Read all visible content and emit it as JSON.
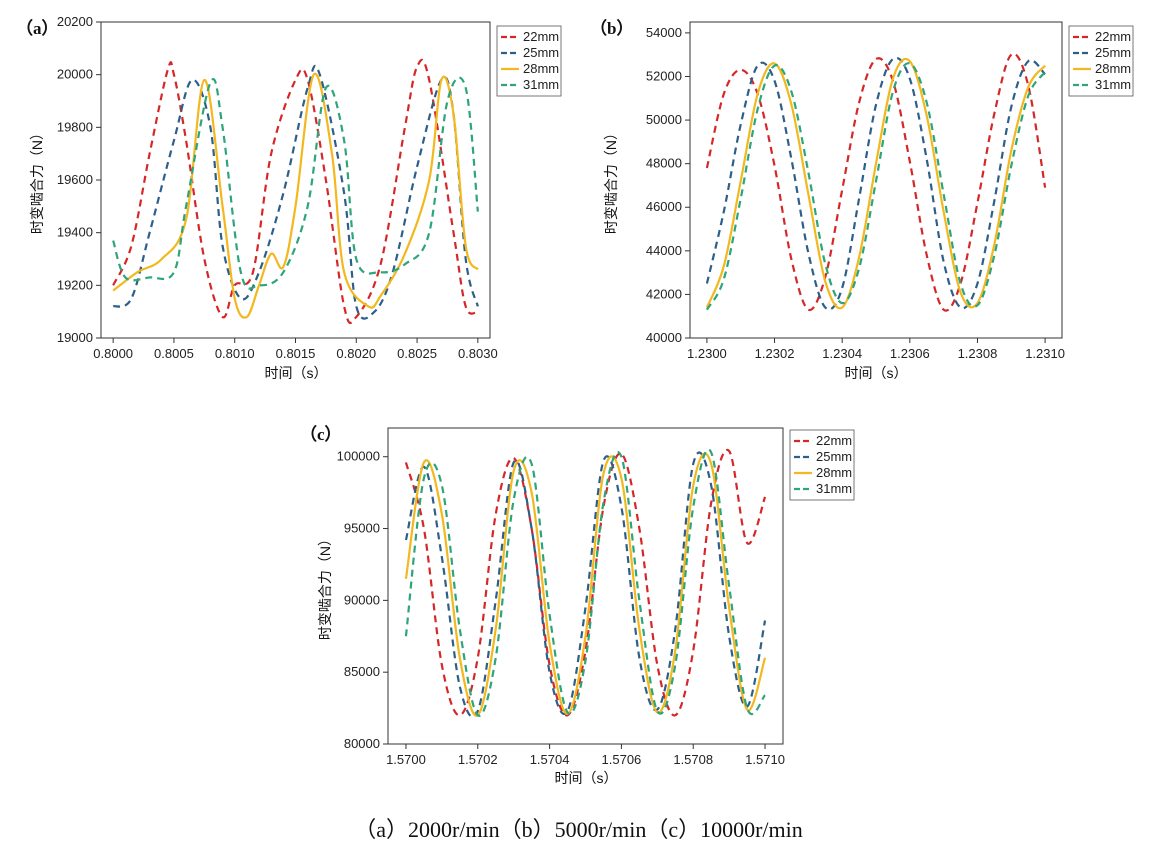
{
  "caption": "（a）2000r/min（b）5000r/min（c）10000r/min",
  "colors": {
    "22mm": "#d62728",
    "25mm": "#2c5f8a",
    "28mm": "#f2b81e",
    "31mm": "#2ca57a"
  },
  "chart_data": [
    {
      "type": "line",
      "tag": "（a）",
      "xlabel": "时间（s）",
      "ylabel": "时变啮合力（N）",
      "xlim": [
        0.7999,
        0.8031
      ],
      "ylim": [
        19000,
        20200
      ],
      "xticks": [
        "0.8000",
        "0.8005",
        "0.8010",
        "0.8015",
        "0.8020",
        "0.8025",
        "0.8030"
      ],
      "yticks": [
        "19000",
        "19200",
        "19400",
        "19600",
        "19800",
        "20000",
        "20200"
      ],
      "legend_position": "outside-top-right",
      "series": [
        {
          "name": "22mm",
          "style": "dashed",
          "x": [
            0.8,
            0.80015,
            0.8003,
            0.80045,
            0.8005,
            0.8006,
            0.80075,
            0.8009,
            0.801,
            0.80115,
            0.8013,
            0.8015,
            0.8016,
            0.80175,
            0.8019,
            0.802,
            0.8022,
            0.8024,
            0.8025,
            0.8026,
            0.8028,
            0.8029,
            0.803
          ],
          "y": [
            19200,
            19350,
            19700,
            20020,
            20000,
            19750,
            19300,
            19080,
            19200,
            19250,
            19700,
            19980,
            19980,
            19600,
            19120,
            19080,
            19280,
            19800,
            20030,
            19980,
            19400,
            19120,
            19100
          ]
        },
        {
          "name": "25mm",
          "style": "dashed",
          "x": [
            0.8,
            0.80015,
            0.8003,
            0.8005,
            0.80065,
            0.8008,
            0.8009,
            0.80105,
            0.8012,
            0.8014,
            0.8016,
            0.8017,
            0.8019,
            0.802,
            0.80215,
            0.8023,
            0.8025,
            0.8027,
            0.8028,
            0.8029,
            0.803
          ],
          "y": [
            19120,
            19150,
            19400,
            19750,
            19980,
            19800,
            19350,
            19150,
            19250,
            19550,
            19950,
            20000,
            19550,
            19120,
            19100,
            19250,
            19650,
            19980,
            19850,
            19300,
            19120
          ]
        },
        {
          "name": "28mm",
          "style": "solid",
          "x": [
            0.8,
            0.8002,
            0.8004,
            0.8006,
            0.80075,
            0.8009,
            0.801,
            0.8011,
            0.8012,
            0.8013,
            0.8014,
            0.8015,
            0.80165,
            0.8018,
            0.8019,
            0.8021,
            0.8022,
            0.8024,
            0.8026,
            0.8027,
            0.8028,
            0.8029,
            0.803
          ],
          "y": [
            19180,
            19250,
            19300,
            19450,
            19980,
            19500,
            19150,
            19080,
            19200,
            19320,
            19270,
            19500,
            20000,
            19700,
            19250,
            19120,
            19160,
            19320,
            19600,
            19980,
            19850,
            19350,
            19260
          ]
        },
        {
          "name": "31mm",
          "style": "dashed",
          "x": [
            0.8,
            0.8001,
            0.8003,
            0.8005,
            0.8006,
            0.8008,
            0.8009,
            0.80105,
            0.8012,
            0.8014,
            0.8016,
            0.80175,
            0.8019,
            0.802,
            0.8022,
            0.8024,
            0.8026,
            0.80275,
            0.8029,
            0.803
          ],
          "y": [
            19370,
            19230,
            19230,
            19250,
            19500,
            19970,
            19800,
            19250,
            19200,
            19250,
            19500,
            19950,
            19750,
            19300,
            19250,
            19280,
            19400,
            19900,
            19950,
            19480
          ]
        }
      ]
    },
    {
      "type": "line",
      "tag": "（b）",
      "xlabel": "时间（s）",
      "ylabel": "时变啮合力（N）",
      "xlim": [
        1.22995,
        1.23105
      ],
      "ylim": [
        40000,
        54500
      ],
      "xticks": [
        "1.2300",
        "1.2302",
        "1.2304",
        "1.2306",
        "1.2308",
        "1.2310"
      ],
      "yticks": [
        "40000",
        "42000",
        "44000",
        "46000",
        "48000",
        "50000",
        "52000",
        "54000"
      ],
      "legend_position": "outside-top-right",
      "series": [
        {
          "name": "22mm",
          "style": "dashed",
          "x": [
            1.23,
            1.23005,
            1.2301,
            1.23015,
            1.2302,
            1.23025,
            1.2303,
            1.23035,
            1.2304,
            1.23045,
            1.2305,
            1.23055,
            1.2306,
            1.23065,
            1.2307,
            1.23075,
            1.2308,
            1.23085,
            1.2309,
            1.23095,
            1.231
          ],
          "y": [
            47800,
            51200,
            52300,
            51200,
            47900,
            43600,
            41300,
            42800,
            46800,
            50800,
            52800,
            51800,
            48100,
            43800,
            41300,
            42500,
            46200,
            50300,
            53000,
            51600,
            46900
          ]
        },
        {
          "name": "25mm",
          "style": "dashed",
          "x": [
            1.23,
            1.23005,
            1.2301,
            1.23015,
            1.2302,
            1.23025,
            1.2303,
            1.23035,
            1.2304,
            1.23045,
            1.2305,
            1.23055,
            1.2306,
            1.23065,
            1.2307,
            1.23075,
            1.2308,
            1.23085,
            1.2309,
            1.23095,
            1.231
          ],
          "y": [
            42500,
            45800,
            49800,
            52500,
            51800,
            48200,
            43900,
            41400,
            42300,
            46400,
            50700,
            52800,
            51900,
            48200,
            43500,
            41400,
            42500,
            46300,
            50600,
            52700,
            52100
          ]
        },
        {
          "name": "28mm",
          "style": "solid",
          "x": [
            1.23,
            1.23005,
            1.2301,
            1.23015,
            1.2302,
            1.23025,
            1.2303,
            1.23035,
            1.2304,
            1.23045,
            1.2305,
            1.23055,
            1.2306,
            1.23065,
            1.2307,
            1.23075,
            1.2308,
            1.23085,
            1.2309,
            1.23095,
            1.231
          ],
          "y": [
            41400,
            43300,
            47200,
            51200,
            52600,
            50700,
            46600,
            42600,
            41400,
            43700,
            48000,
            51900,
            52700,
            50200,
            45800,
            42100,
            41600,
            44300,
            48600,
            51500,
            52500
          ]
        },
        {
          "name": "31mm",
          "style": "dashed",
          "x": [
            1.23,
            1.23005,
            1.2301,
            1.23015,
            1.2302,
            1.23025,
            1.2303,
            1.23035,
            1.2304,
            1.23045,
            1.2305,
            1.23055,
            1.2306,
            1.23065,
            1.2307,
            1.23075,
            1.2308,
            1.23085,
            1.2309,
            1.23095,
            1.231
          ],
          "y": [
            41300,
            42700,
            46400,
            50500,
            52500,
            51300,
            47600,
            43400,
            41600,
            43200,
            47200,
            51300,
            52600,
            50800,
            46600,
            42500,
            41500,
            43800,
            47900,
            51100,
            52200
          ]
        }
      ]
    },
    {
      "type": "line",
      "tag": "（c）",
      "xlabel": "时间（s）",
      "ylabel": "时变啮合力（N）",
      "xlim": [
        1.56995,
        1.57105
      ],
      "ylim": [
        80000,
        102000
      ],
      "xticks": [
        "1.5700",
        "1.5702",
        "1.5704",
        "1.5706",
        "1.5708",
        "1.5710"
      ],
      "yticks": [
        "80000",
        "85000",
        "90000",
        "95000",
        "100000"
      ],
      "legend_position": "outside-top-right",
      "series": [
        {
          "name": "22mm",
          "style": "dashed",
          "x": [
            1.57,
            1.57005,
            1.5701,
            1.57015,
            1.5702,
            1.57025,
            1.5703,
            1.57035,
            1.5704,
            1.57045,
            1.5705,
            1.57055,
            1.5706,
            1.57065,
            1.5707,
            1.57075,
            1.5708,
            1.57085,
            1.5709,
            1.57095,
            1.571
          ],
          "y": [
            99600,
            95000,
            85500,
            82000,
            86000,
            96000,
            99900,
            95000,
            85500,
            82000,
            86500,
            96500,
            100200,
            95000,
            85500,
            82000,
            86500,
            96800,
            100400,
            94000,
            97200
          ]
        },
        {
          "name": "25mm",
          "style": "dashed",
          "x": [
            1.57,
            1.57005,
            1.5701,
            1.57015,
            1.5702,
            1.57025,
            1.5703,
            1.57035,
            1.5704,
            1.57045,
            1.5705,
            1.57055,
            1.5706,
            1.57065,
            1.5707,
            1.57075,
            1.5708,
            1.57085,
            1.5709,
            1.57095,
            1.571
          ],
          "y": [
            94200,
            99300,
            93000,
            84000,
            82300,
            90000,
            99600,
            95000,
            85000,
            82300,
            89500,
            99700,
            96500,
            86000,
            82400,
            88000,
            99500,
            98000,
            87500,
            82600,
            88600
          ]
        },
        {
          "name": "28mm",
          "style": "solid",
          "x": [
            1.57,
            1.57005,
            1.5701,
            1.57015,
            1.5702,
            1.57025,
            1.5703,
            1.57035,
            1.5704,
            1.57045,
            1.5705,
            1.57055,
            1.5706,
            1.57065,
            1.5707,
            1.57075,
            1.5708,
            1.57085,
            1.5709,
            1.57095,
            1.571
          ],
          "y": [
            91500,
            99600,
            96000,
            86000,
            82000,
            88000,
            99000,
            97500,
            87000,
            82100,
            87500,
            98800,
            98500,
            88000,
            82200,
            86500,
            98000,
            99500,
            89500,
            82400,
            86000
          ]
        },
        {
          "name": "31mm",
          "style": "dashed",
          "x": [
            1.57,
            1.57005,
            1.5701,
            1.57015,
            1.5702,
            1.57025,
            1.5703,
            1.57035,
            1.5704,
            1.57045,
            1.5705,
            1.57055,
            1.5706,
            1.57065,
            1.5707,
            1.57075,
            1.5708,
            1.57085,
            1.5709,
            1.57095,
            1.571
          ],
          "y": [
            87500,
            98500,
            98000,
            88000,
            82000,
            86000,
            97000,
            99500,
            89000,
            82200,
            85800,
            96800,
            100000,
            90000,
            82300,
            85500,
            96500,
            100300,
            91000,
            82500,
            83400
          ]
        }
      ]
    }
  ]
}
